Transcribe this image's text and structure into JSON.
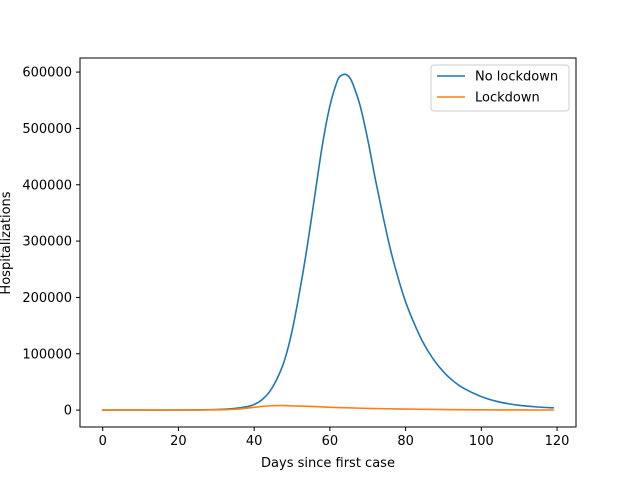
{
  "chart_data": {
    "type": "line",
    "title": "",
    "xlabel": "Days since first case",
    "ylabel": "Hospitalizations",
    "xlim": [
      -6,
      125
    ],
    "ylim": [
      -30000,
      625000
    ],
    "xticks": [
      0,
      20,
      40,
      60,
      80,
      100,
      120
    ],
    "xtick_labels": [
      "0",
      "20",
      "40",
      "60",
      "80",
      "100",
      "120"
    ],
    "yticks": [
      0,
      100000,
      200000,
      300000,
      400000,
      500000,
      600000
    ],
    "ytick_labels": [
      "0",
      "100000",
      "200000",
      "300000",
      "400000",
      "500000",
      "600000"
    ],
    "grid": false,
    "legend_position": "top-right",
    "series": [
      {
        "name": "No lockdown",
        "color": "#1f77b4",
        "x": [
          0,
          10,
          20,
          30,
          35,
          38,
          40,
          42,
          44,
          46,
          48,
          50,
          52,
          54,
          56,
          58,
          60,
          62,
          63,
          64,
          65,
          66,
          68,
          70,
          72,
          74,
          76,
          78,
          80,
          82,
          84,
          86,
          88,
          90,
          92,
          95,
          100,
          105,
          110,
          115,
          119
        ],
        "y": [
          0,
          0,
          200,
          1000,
          3000,
          6000,
          10000,
          18000,
          32000,
          55000,
          88000,
          140000,
          210000,
          290000,
          380000,
          470000,
          540000,
          585000,
          594000,
          596000,
          592000,
          580000,
          540000,
          480000,
          410000,
          345000,
          285000,
          235000,
          192000,
          158000,
          128000,
          104000,
          84000,
          68000,
          55000,
          40000,
          24000,
          14000,
          8500,
          5500,
          4000
        ]
      },
      {
        "name": "Lockdown",
        "color": "#ff7f0e",
        "x": [
          0,
          10,
          20,
          30,
          35,
          40,
          42,
          44,
          46,
          48,
          50,
          55,
          60,
          65,
          70,
          75,
          80,
          85,
          90,
          95,
          100,
          105,
          110,
          115,
          119
        ],
        "y": [
          0,
          0,
          0,
          500,
          1500,
          5000,
          6500,
          7500,
          8000,
          8000,
          7500,
          6500,
          5000,
          4000,
          3000,
          2400,
          1800,
          1400,
          1000,
          700,
          500,
          350,
          250,
          180,
          150
        ]
      }
    ]
  }
}
